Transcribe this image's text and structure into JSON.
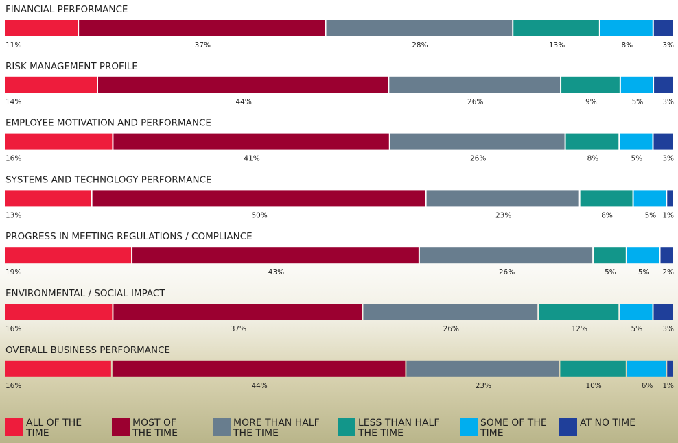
{
  "chart_data": {
    "type": "bar",
    "orientation": "horizontal",
    "stacked": true,
    "categories": [
      "FINANCIAL PERFORMANCE",
      "RISK MANAGEMENT PROFILE",
      "EMPLOYEE MOTIVATION AND PERFORMANCE",
      "SYSTEMS AND TECHNOLOGY PERFORMANCE",
      "PROGRESS IN MEETING REGULATIONS / COMPLIANCE",
      "ENVIRONMENTAL / SOCIAL IMPACT",
      "OVERALL BUSINESS PERFORMANCE"
    ],
    "series": [
      {
        "name": "ALL OF THE TIME",
        "color": "#ee1c3c",
        "values": [
          11,
          14,
          16,
          13,
          19,
          16,
          16
        ],
        "value_labels": [
          "11%",
          "14%",
          "16%",
          "13%",
          "19%",
          "16%",
          "16%"
        ]
      },
      {
        "name": "MOST OF THE TIME",
        "color": "#9b0030",
        "values": [
          37,
          44,
          41,
          50,
          43,
          37,
          44
        ],
        "value_labels": [
          "37%",
          "44%",
          "41%",
          "50%",
          "43%",
          "37%",
          "44%"
        ]
      },
      {
        "name": "MORE THAN HALF THE TIME",
        "color": "#687d8e",
        "values": [
          28,
          26,
          26,
          23,
          26,
          26,
          23
        ],
        "value_labels": [
          "28%",
          "26%",
          "26%",
          "23%",
          "26%",
          "26%",
          "23%"
        ]
      },
      {
        "name": "LESS THAN HALF THE TIME",
        "color": "#12968a",
        "values": [
          13,
          9,
          8,
          8,
          5,
          12,
          10
        ],
        "value_labels": [
          "13%",
          "9%",
          "8%",
          "8%",
          "5%",
          "12%",
          "10%"
        ]
      },
      {
        "name": "SOME OF THE TIME",
        "color": "#00aeef",
        "values": [
          8,
          5,
          5,
          5,
          5,
          5,
          6
        ],
        "value_labels": [
          "8%",
          "5%",
          "5%",
          "5%",
          "5%",
          "5%",
          "6%"
        ]
      },
      {
        "name": "AT NO TIME",
        "color": "#1f3f9a",
        "values": [
          3,
          3,
          3,
          1,
          2,
          3,
          1
        ],
        "value_labels": [
          "3%",
          "3%",
          "3%",
          "1%",
          "2%",
          "3%",
          "1%"
        ]
      }
    ]
  }
}
